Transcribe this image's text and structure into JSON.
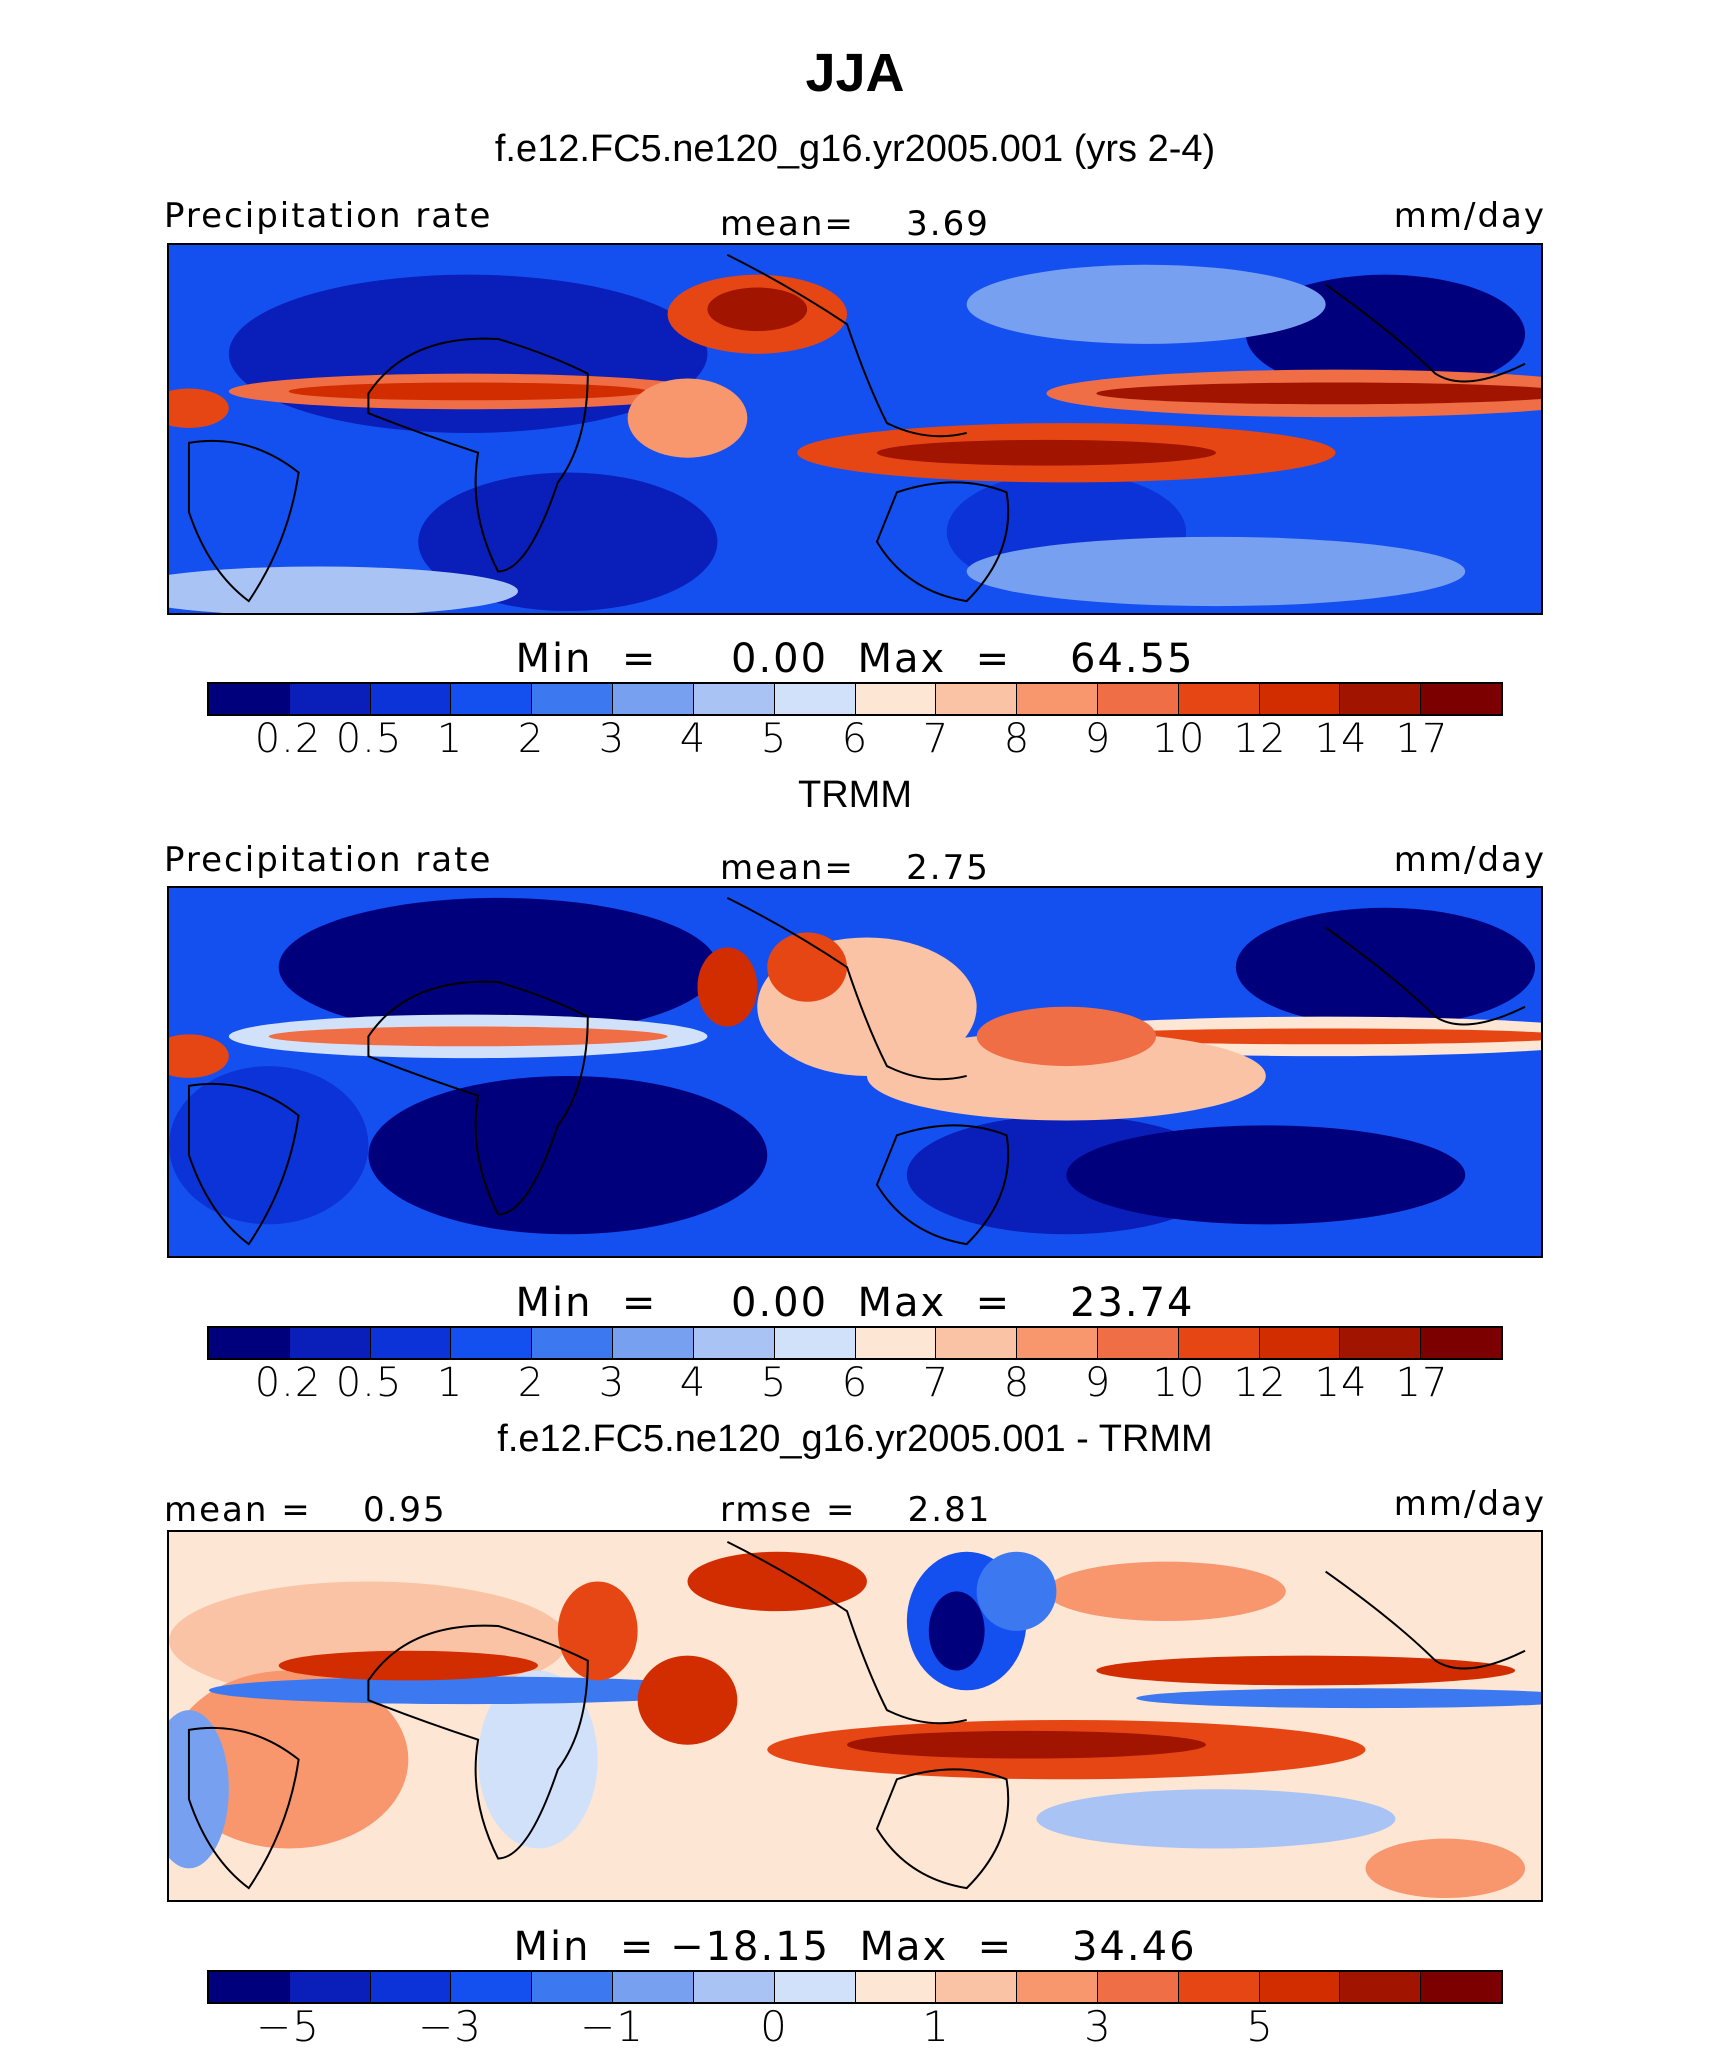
{
  "title": "JJA",
  "colors": {
    "abs": [
      "#00007d",
      "#0a1eb9",
      "#0b33d7",
      "#1450f0",
      "#3c78f0",
      "#78a0f0",
      "#aac3f5",
      "#d2e1fa",
      "#fde6d4",
      "#fbc3a5",
      "#f8966e",
      "#f06e46",
      "#e64614",
      "#d22d00",
      "#a01400",
      "#7d0000"
    ],
    "diff": [
      "#00007d",
      "#0a1eb9",
      "#0b33d7",
      "#1450f0",
      "#3c78f0",
      "#78a0f0",
      "#aac3f5",
      "#d2e1fa",
      "#fde6d4",
      "#fbc3a5",
      "#f8966e",
      "#f06e46",
      "#e64614",
      "#d22d00",
      "#a01400",
      "#7d0000"
    ]
  },
  "panels": [
    {
      "id": "model",
      "subtitle": "f.e12.FC5.ne120_g16.yr2005.001 (yrs 2-4)",
      "left_label": "Precipitation rate",
      "center_label": "mean=    3.69",
      "right_label": "mm/day",
      "minmax": "Min  =     0.00  Max  =    64.55",
      "ticks": [
        "0.2",
        "0.5",
        "1",
        "2",
        "3",
        "4",
        "5",
        "6",
        "7",
        "8",
        "9",
        "10",
        "12",
        "14",
        "17"
      ]
    },
    {
      "id": "obs",
      "subtitle": "TRMM",
      "left_label": "Precipitation rate",
      "center_label": "mean=    2.75",
      "right_label": "mm/day",
      "minmax": "Min  =     0.00  Max  =    23.74",
      "ticks": [
        "0.2",
        "0.5",
        "1",
        "2",
        "3",
        "4",
        "5",
        "6",
        "7",
        "8",
        "9",
        "10",
        "12",
        "14",
        "17"
      ]
    },
    {
      "id": "diff",
      "subtitle": "f.e12.FC5.ne120_g16.yr2005.001 - TRMM",
      "left_label": "mean =    0.95",
      "center_label": "rmse =    2.81",
      "right_label": "mm/day",
      "minmax": "Min  = −18.15  Max  =    34.46",
      "ticks": [
        "−5",
        "−3",
        "−1",
        "0",
        "1",
        "3",
        "5"
      ]
    }
  ]
}
